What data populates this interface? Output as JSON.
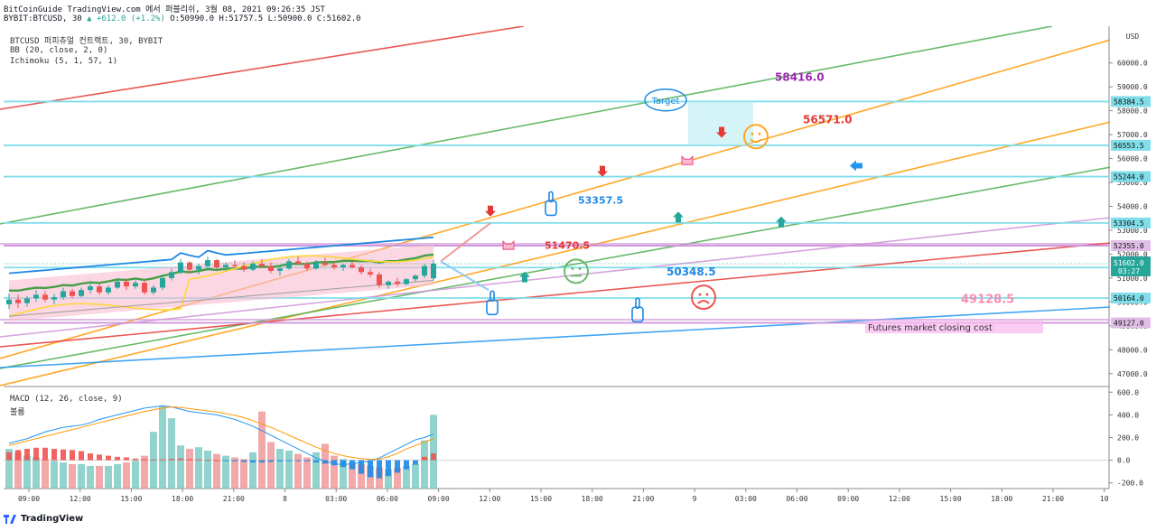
{
  "header": {
    "line1": "BitCoinGuide TradingView.com 에서 퍼블리쉬, 3월 08, 2021 09:26:35 JST",
    "symbol_line": "BYBIT:BTCUSD, 30",
    "change": "▲ +612.0 (+1.2%)",
    "ohlc": "O:50990.0 H:51757.5 L:50900.0 C:51602.0"
  },
  "legend": {
    "title": "BTCUSD 퍼피츄얼 컨트랙트, 30, BYBIT",
    "bb": "BB (20, close, 2, 0)",
    "ichimoku": "Ichimoku (5, 1, 57, 1)",
    "macd": "MACD (12, 26, close, 9)",
    "volume": "볼륨"
  },
  "footer": {
    "brand": "TradingView"
  },
  "colors": {
    "up": "#26a69a",
    "down": "#ef5350",
    "orange": "#ff9800",
    "green": "#4caf50",
    "red": "#e53935",
    "blue": "#2196f3",
    "lavender": "#ce93d8",
    "cyan": "#80deea"
  },
  "chart_data": [
    {
      "type": "candlestick",
      "title": "BTCUSD 퍼피츄얼 컨트랙트, 30, BYBIT",
      "currency": "USD",
      "ylim": [
        46500,
        61500
      ],
      "y_ticks": [
        47000,
        48000,
        49000,
        50000,
        51000,
        52000,
        53000,
        54000,
        55000,
        56000,
        57000,
        58000,
        59000,
        60000
      ],
      "x_ticks": [
        "09:00",
        "12:00",
        "15:00",
        "18:00",
        "21:00",
        "8",
        "03:00",
        "06:00",
        "09:00",
        "12:00",
        "15:00",
        "18:00",
        "21:00",
        "9",
        "03:00",
        "06:00",
        "09:00",
        "12:00",
        "15:00",
        "18:00",
        "21:00",
        "10"
      ],
      "last_price": "51602.0",
      "countdown": "03:27",
      "candles": [
        [
          49900,
          50350,
          49700,
          50100
        ],
        [
          50100,
          50300,
          49750,
          49950
        ],
        [
          49950,
          50250,
          49800,
          50150
        ],
        [
          50150,
          50500,
          50000,
          50300
        ],
        [
          50300,
          50450,
          50000,
          50100
        ],
        [
          50100,
          50350,
          49900,
          50200
        ],
        [
          50200,
          50600,
          50100,
          50450
        ],
        [
          50450,
          50550,
          50150,
          50250
        ],
        [
          50250,
          50600,
          50200,
          50500
        ],
        [
          50500,
          50800,
          50350,
          50650
        ],
        [
          50650,
          50750,
          50300,
          50400
        ],
        [
          50400,
          50700,
          50300,
          50600
        ],
        [
          50600,
          51000,
          50550,
          50850
        ],
        [
          50850,
          50950,
          50500,
          50650
        ],
        [
          50650,
          50900,
          50550,
          50800
        ],
        [
          50800,
          50900,
          50300,
          50400
        ],
        [
          50400,
          50700,
          50300,
          50600
        ],
        [
          50600,
          51150,
          50500,
          51000
        ],
        [
          51000,
          51400,
          50900,
          51250
        ],
        [
          51250,
          51800,
          51150,
          51650
        ],
        [
          51650,
          51700,
          51200,
          51350
        ],
        [
          51350,
          51600,
          51150,
          51500
        ],
        [
          51500,
          51900,
          51400,
          51750
        ],
        [
          51750,
          51800,
          51350,
          51450
        ],
        [
          51450,
          51650,
          51300,
          51550
        ],
        [
          51550,
          51750,
          51400,
          51500
        ],
        [
          51500,
          51650,
          51250,
          51350
        ],
        [
          51350,
          51700,
          51300,
          51600
        ],
        [
          51600,
          51800,
          51450,
          51500
        ],
        [
          51500,
          51650,
          51200,
          51300
        ],
        [
          51300,
          51450,
          51100,
          51400
        ],
        [
          51400,
          51800,
          51350,
          51700
        ],
        [
          51700,
          51900,
          51550,
          51600
        ],
        [
          51600,
          51700,
          51300,
          51400
        ],
        [
          51400,
          51750,
          51350,
          51650
        ],
        [
          51650,
          51850,
          51500,
          51550
        ],
        [
          51550,
          51700,
          51350,
          51450
        ],
        [
          51450,
          51600,
          51300,
          51550
        ],
        [
          51550,
          51700,
          51400,
          51450
        ],
        [
          51450,
          51550,
          51150,
          51250
        ],
        [
          51250,
          51400,
          51050,
          51150
        ],
        [
          51150,
          51250,
          50600,
          50700
        ],
        [
          50700,
          50900,
          50550,
          50850
        ],
        [
          50850,
          51000,
          50650,
          50750
        ],
        [
          50750,
          51000,
          50700,
          50950
        ],
        [
          50950,
          51150,
          50850,
          51100
        ],
        [
          51100,
          51600,
          51000,
          51500
        ],
        [
          50990,
          51757.5,
          50900,
          51602
        ]
      ]
    },
    {
      "type": "histogram",
      "title": "MACD (12, 26, close, 9)",
      "ylim": [
        -250,
        650
      ],
      "y_ticks": [
        -200,
        0,
        200,
        400,
        600
      ],
      "volume": [
        20,
        18,
        16,
        15,
        14,
        13,
        12,
        11,
        11,
        10,
        10,
        10,
        11,
        12,
        13,
        16,
        30,
        45,
        38,
        22,
        20,
        21,
        19,
        17,
        16,
        15,
        14,
        18,
        42,
        24,
        20,
        19,
        17,
        15,
        18,
        23,
        16,
        14,
        12,
        11,
        10,
        9,
        8,
        9,
        10,
        11,
        25,
        40
      ],
      "histogram": [
        70,
        90,
        100,
        110,
        110,
        100,
        95,
        90,
        80,
        60,
        50,
        40,
        30,
        25,
        15,
        10,
        5,
        8,
        12,
        15,
        10,
        6,
        3,
        0,
        -5,
        -10,
        -15,
        -20,
        -20,
        -15,
        -10,
        -5,
        -5,
        -10,
        -20,
        -30,
        -45,
        -60,
        -80,
        -120,
        -150,
        -160,
        -140,
        -110,
        -80,
        -40,
        30,
        60
      ],
      "macd": [
        150,
        170,
        190,
        220,
        250,
        270,
        290,
        300,
        310,
        330,
        360,
        380,
        400,
        420,
        440,
        460,
        470,
        480,
        470,
        450,
        430,
        420,
        410,
        400,
        380,
        360,
        330,
        300,
        260,
        220,
        180,
        140,
        100,
        60,
        20,
        -10,
        -30,
        -40,
        -30,
        -20,
        -10,
        20,
        60,
        100,
        140,
        180,
        200,
        230
      ],
      "signal": [
        130,
        150,
        170,
        190,
        210,
        230,
        250,
        270,
        290,
        310,
        330,
        350,
        370,
        390,
        410,
        430,
        445,
        460,
        470,
        465,
        455,
        445,
        435,
        425,
        410,
        395,
        375,
        350,
        320,
        290,
        255,
        220,
        185,
        150,
        115,
        85,
        60,
        40,
        25,
        15,
        8,
        10,
        30,
        60,
        100,
        130,
        160,
        190
      ]
    }
  ],
  "annotations": [
    {
      "label": "Target",
      "price": 58600,
      "kind": "bubble"
    },
    {
      "label": "58416.0",
      "price": 58416
    },
    {
      "label": "56571.0",
      "price": 56571
    },
    {
      "label": "53357.5",
      "price": 53357.5
    },
    {
      "label": "51470.5",
      "price": 51470.5
    },
    {
      "label": "50348.5",
      "price": 50348.5
    },
    {
      "label": "49128.5",
      "price": 49128.5
    },
    {
      "label": "Futures market closing cost",
      "price": 48950
    }
  ],
  "price_levels": [
    {
      "label": "58384.5",
      "price": 58384.5,
      "kind": "cyan"
    },
    {
      "label": "56553.5",
      "price": 56553.5,
      "kind": "cyan"
    },
    {
      "label": "55244.0",
      "price": 55244,
      "kind": "cyan"
    },
    {
      "label": "53304.5",
      "price": 53304.5,
      "kind": "cyan"
    },
    {
      "label": "52355.0",
      "price": 52355,
      "kind": "lavender"
    },
    {
      "label": "51439.0",
      "price": 51439,
      "kind": "cyan"
    },
    {
      "label": "50164.0",
      "price": 50164,
      "kind": "cyan"
    },
    {
      "label": "49127.0",
      "price": 49127,
      "kind": "lavender"
    }
  ]
}
